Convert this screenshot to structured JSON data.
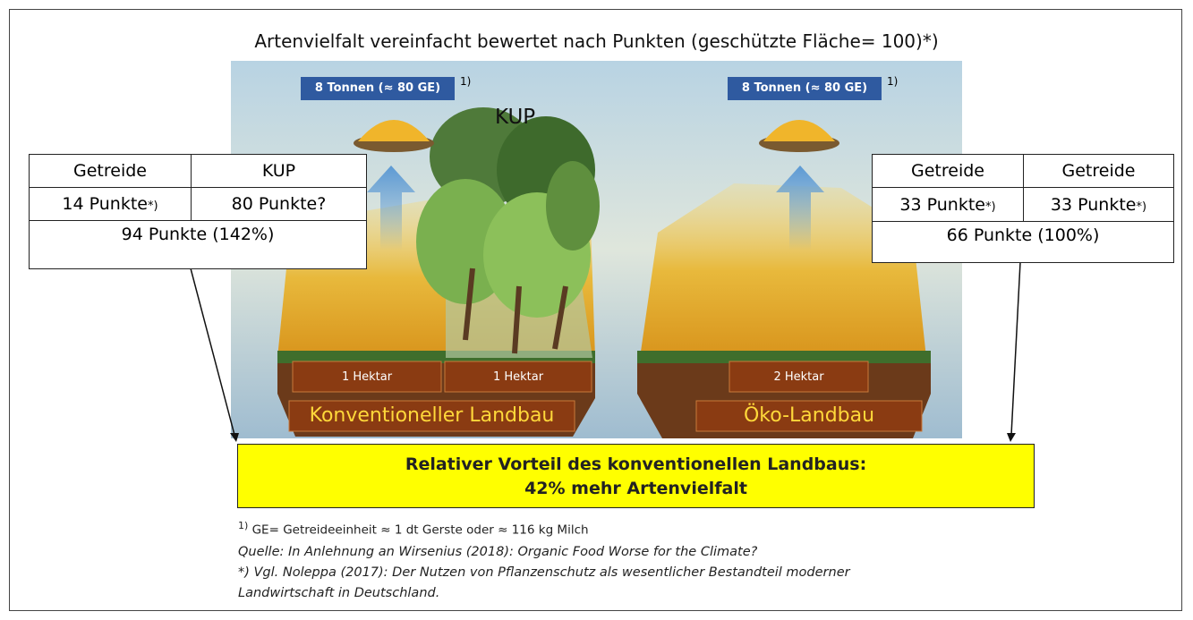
{
  "title": "Artenvielfalt vereinfacht bewertet nach Punkten (geschützte Fläche= 100)*)",
  "yield_labels": [
    {
      "text": "8 Tonnen (≈ 80 GE)",
      "note": "1)"
    },
    {
      "text": "8 Tonnen (≈ 80 GE)",
      "note": "1)"
    }
  ],
  "kup_label": "KUP",
  "left_table": {
    "header": [
      "Getreide",
      "KUP"
    ],
    "points": [
      {
        "text": "14 Punkte",
        "note": "*)"
      },
      {
        "text": "80 Punkte?"
      }
    ],
    "total": "94 Punkte (142%)"
  },
  "right_table": {
    "header": [
      "Getreide",
      "Getreide"
    ],
    "points": [
      {
        "text": "33 Punkte",
        "note": "*)"
      },
      {
        "text": "33 Punkte",
        "note": "*)"
      }
    ],
    "total": "66 Punkte (100%)"
  },
  "hectares": [
    "1 Hektar",
    "1 Hektar",
    "2 Hektar"
  ],
  "farm_labels": [
    "Konventioneller Landbau",
    "Öko-Landbau"
  ],
  "conclusion": [
    "Relativer Vorteil des konventionellen Landbaus:",
    "42% mehr Artenvielfalt"
  ],
  "footnote": {
    "mark": "1)",
    "text": "GE= Getreideeinheit ≈ 1 dt Gerste oder ≈ 116  kg Milch"
  },
  "sources": [
    "Quelle: In Anlehnung an Wirsenius (2018): Organic Food Worse for the Climate?",
    "*) Vgl. Noleppa (2017): Der Nutzen von Pflanzenschutz als wesentlicher Bestandteil moderner",
    "Landwirtschaft in Deutschland."
  ]
}
